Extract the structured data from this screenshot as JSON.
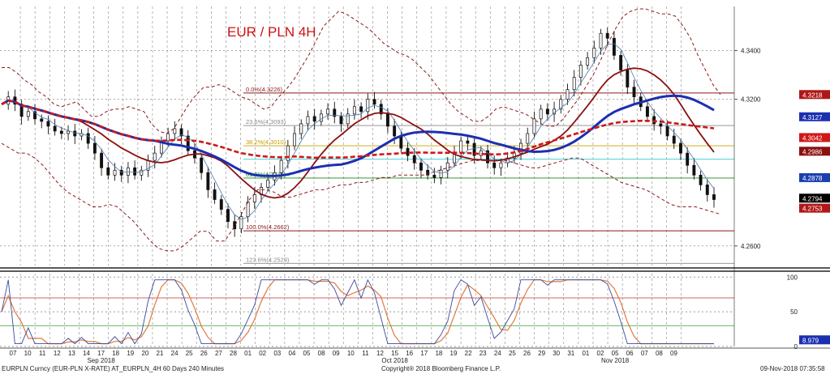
{
  "chart_data": {
    "type": "line",
    "title": "EUR / PLN 4H",
    "y_axis_main": {
      "ylim": [
        4.252,
        4.358
      ],
      "ticks": [
        "4.3400",
        "4.3200",
        "4.2600"
      ],
      "tick_values": [
        4.34,
        4.32,
        4.26
      ]
    },
    "y_axis_osc": {
      "ylim": [
        0,
        105
      ],
      "ticks": [
        "100",
        "50",
        "0"
      ],
      "tick_values": [
        100,
        50,
        0
      ]
    },
    "x_days": [
      "07",
      "10",
      "11",
      "12",
      "13",
      "14",
      "17",
      "18",
      "19",
      "20",
      "21",
      "24",
      "25",
      "26",
      "27",
      "28",
      "01",
      "02",
      "03",
      "04",
      "05",
      "08",
      "09",
      "10",
      "11",
      "12",
      "15",
      "16",
      "17",
      "18",
      "19",
      "22",
      "23",
      "24",
      "25",
      "26",
      "29",
      "30",
      "31",
      "01",
      "02",
      "05",
      "06",
      "07",
      "08",
      "09"
    ],
    "month_labels": [
      {
        "label": "Sep 2018",
        "at_day": 6
      },
      {
        "label": "Oct 2018",
        "at_day": 26
      },
      {
        "label": "Nov 2018",
        "at_day": 41
      }
    ],
    "fib_levels": [
      {
        "label": "0.0%(4.3226)",
        "value": 4.3226,
        "color": "#8b1a1a"
      },
      {
        "label": "23.6%(4.3093)",
        "value": 4.3093,
        "color": "#8a8a8a"
      },
      {
        "label": "38.2%(4.3010)",
        "value": 4.301,
        "color": "#c8a000"
      },
      {
        "label": "61.8%(4.2878)",
        "value": 4.2878,
        "color": "#1a8a1a"
      },
      {
        "label": "100.0%(4.2662)",
        "value": 4.2662,
        "color": "#8b1a1a"
      },
      {
        "label": "123.6%(4.2529)",
        "value": 4.2529,
        "color": "#8a8a8a"
      }
    ],
    "extra_levels": [
      {
        "value": 4.2955,
        "color": "#30c8d0"
      }
    ],
    "price_tags": [
      {
        "label": "4.3218",
        "value": 4.3218,
        "bg": "#b01818"
      },
      {
        "label": "4.3127",
        "value": 4.3127,
        "bg": "#1c2fb0"
      },
      {
        "label": "4.3042",
        "value": 4.3042,
        "bg": "#d01818"
      },
      {
        "label": "4.2986",
        "value": 4.2986,
        "bg": "#8b1010"
      },
      {
        "label": "4.2878",
        "value": 4.2878,
        "bg": "#1c3fb0"
      },
      {
        "label": "4.2794",
        "value": 4.2794,
        "bg": "#000000"
      },
      {
        "label": "4.2753",
        "value": 4.2753,
        "bg": "#b01818"
      }
    ],
    "osc_tag": {
      "label": "8.979",
      "value": 8.979,
      "bg": "#1c2fb0"
    },
    "price_close": [
      4.318,
      4.321,
      4.318,
      4.313,
      4.315,
      4.312,
      4.311,
      4.309,
      4.307,
      4.306,
      4.307,
      4.305,
      4.306,
      4.302,
      4.298,
      4.292,
      4.289,
      4.291,
      4.289,
      4.292,
      4.289,
      4.291,
      4.295,
      4.298,
      4.303,
      4.306,
      4.308,
      4.305,
      4.299,
      4.296,
      4.29,
      4.283,
      4.279,
      4.275,
      4.27,
      4.267,
      4.272,
      4.278,
      4.281,
      4.284,
      4.287,
      4.29,
      4.295,
      4.301,
      4.306,
      4.31,
      4.313,
      4.311,
      4.314,
      4.316,
      4.313,
      4.31,
      4.314,
      4.317,
      4.315,
      4.32,
      4.318,
      4.314,
      4.309,
      4.305,
      4.3,
      4.297,
      4.294,
      4.291,
      4.289,
      4.288,
      4.291,
      4.294,
      4.298,
      4.303,
      4.302,
      4.297,
      4.299,
      4.294,
      4.292,
      4.294,
      4.296,
      4.298,
      4.302,
      4.306,
      4.312,
      4.316,
      4.314,
      4.316,
      4.32,
      4.324,
      4.329,
      4.334,
      4.337,
      4.341,
      4.347,
      4.345,
      4.338,
      4.332,
      4.325,
      4.321,
      4.317,
      4.313,
      4.31,
      4.309,
      4.305,
      4.302,
      4.298,
      4.293,
      4.289,
      4.285,
      4.281,
      4.279
    ],
    "bollinger_upper": [
      4.333,
      4.333,
      4.331,
      4.328,
      4.326,
      4.323,
      4.321,
      4.318,
      4.317,
      4.318,
      4.319,
      4.316,
      4.313,
      4.313,
      4.315,
      4.316,
      4.316,
      4.317,
      4.316,
      4.315,
      4.31,
      4.307,
      4.306,
      4.308,
      4.313,
      4.318,
      4.322,
      4.325,
      4.325,
      4.326,
      4.325,
      4.323,
      4.321,
      4.32,
      4.318,
      4.316,
      4.317,
      4.321,
      4.324,
      4.328,
      4.333,
      4.338,
      4.344,
      4.35,
      4.353,
      4.356,
      4.355,
      4.353,
      4.351,
      4.349,
      4.346,
      4.343,
      4.341,
      4.339,
      4.338,
      4.336,
      4.333,
      4.33,
      4.326,
      4.322,
      4.318,
      4.315,
      4.313,
      4.311,
      4.311,
      4.313,
      4.316,
      4.317,
      4.316,
      4.315,
      4.314,
      4.312,
      4.31,
      4.309,
      4.309,
      4.312,
      4.316,
      4.32,
      4.325,
      4.33,
      4.336,
      4.343,
      4.349,
      4.354,
      4.356,
      4.357,
      4.357,
      4.356,
      4.355,
      4.355,
      4.354,
      4.35,
      4.345,
      4.338,
      4.332,
      4.326,
      4.322
    ],
    "bollinger_lower": [
      4.302,
      4.3,
      4.298,
      4.298,
      4.296,
      4.293,
      4.289,
      4.285,
      4.282,
      4.28,
      4.278,
      4.276,
      4.276,
      4.277,
      4.276,
      4.273,
      4.27,
      4.266,
      4.262,
      4.259,
      4.258,
      4.258,
      4.26,
      4.263,
      4.266,
      4.266,
      4.262,
      4.262,
      4.267,
      4.273,
      4.279,
      4.283,
      4.283,
      4.282,
      4.28,
      4.28,
      4.281,
      4.282,
      4.283,
      4.283,
      4.284,
      4.285,
      4.285,
      4.286,
      4.286,
      4.287,
      4.288,
      4.288,
      4.289,
      4.289,
      4.289,
      4.289,
      4.29,
      4.291,
      4.292,
      4.293,
      4.294,
      4.295,
      4.295,
      4.295,
      4.295,
      4.295,
      4.294,
      4.293,
      4.292,
      4.292,
      4.293,
      4.294,
      4.295,
      4.296,
      4.296,
      4.294,
      4.292,
      4.29,
      4.288,
      4.286,
      4.285,
      4.284,
      4.283,
      4.281,
      4.279,
      4.277,
      4.276,
      4.276,
      4.276,
      4.275,
      4.274,
      4.273
    ]
  },
  "footer": {
    "left": "EURPLN Curncy (EUR-PLN X-RATE) AT_EURPLN_4H 60 Days 240 Minutes",
    "center": "Copyright® 2018 Bloomberg Finance L.P.",
    "right": "09-Nov-2018 07:35:58"
  }
}
